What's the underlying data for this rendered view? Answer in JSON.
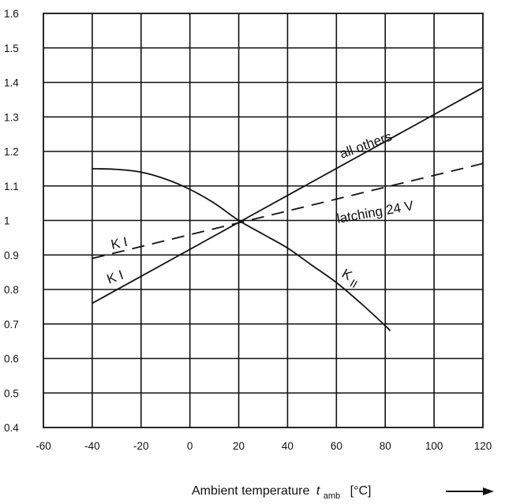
{
  "chart_data": {
    "type": "line",
    "title": "",
    "xlabel_text": "Ambient temperature",
    "xlabel_symbol": "t",
    "xlabel_subscript": "amb",
    "xlabel_unit": "[°C]",
    "ylabel": "",
    "xlim": [
      -60,
      120
    ],
    "ylim": [
      0.4,
      1.6
    ],
    "x_ticks": [
      "-60",
      "-40",
      "-20",
      "0",
      "20",
      "40",
      "60",
      "80",
      "100",
      "120"
    ],
    "y_ticks": [
      "0.4",
      "0.5",
      "0.6",
      "0.7",
      "0.8",
      "0.9",
      "1",
      "1.1",
      "1.2",
      "1.3",
      "1.4",
      "1.5",
      "1.6"
    ],
    "grid": true,
    "series": [
      {
        "name": "all others",
        "style": "solid",
        "x": [
          -40,
          120
        ],
        "y": [
          0.76,
          1.385
        ]
      },
      {
        "name": "latching 24 V",
        "style": "dashed",
        "x": [
          -40,
          120
        ],
        "y": [
          0.89,
          1.165
        ]
      },
      {
        "name": "KII",
        "style": "solid",
        "x": [
          -40,
          -30,
          -20,
          -10,
          0,
          10,
          20,
          30,
          40,
          50,
          60,
          70,
          80,
          82
        ],
        "y": [
          1.15,
          1.148,
          1.14,
          1.12,
          1.09,
          1.05,
          1.0,
          0.96,
          0.92,
          0.87,
          0.82,
          0.76,
          0.695,
          0.68
        ]
      }
    ],
    "annotations": [
      "all others",
      "latching 24 V",
      "K I",
      "K I",
      "K",
      "II"
    ]
  }
}
